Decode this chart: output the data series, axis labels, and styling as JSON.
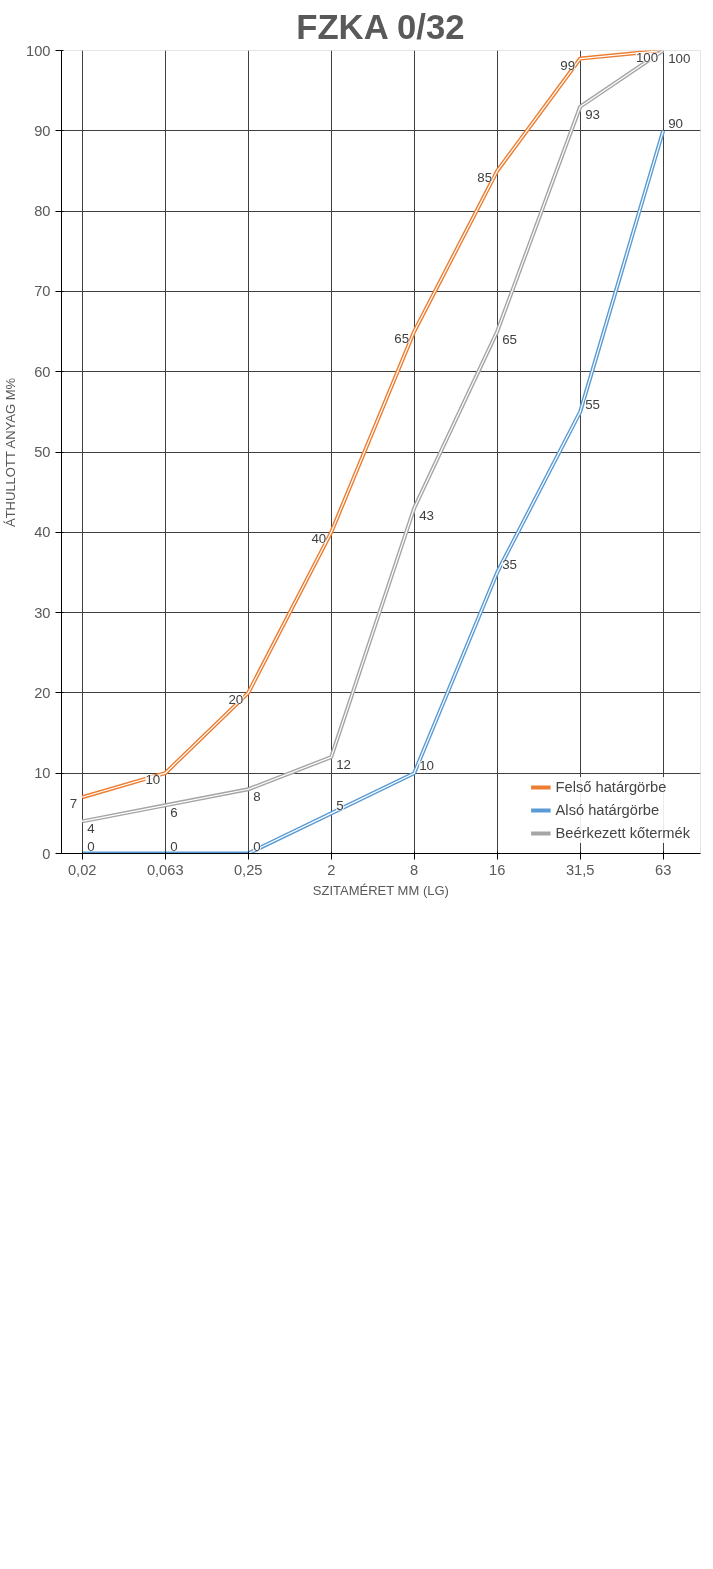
{
  "chart_data": {
    "type": "line",
    "title": "FZKA 0/32",
    "xlabel": "SZITAMÉRET MM (LG)",
    "ylabel": "ÁTHULLOTT ANYAG M%",
    "categories": [
      "0,02",
      "0,063",
      "0,25",
      "2",
      "8",
      "16",
      "31,5",
      "63"
    ],
    "series": [
      {
        "name": "Felső határgörbe",
        "color": "#ed7d31",
        "values": [
          7,
          10,
          20,
          40,
          65,
          85,
          99,
          100
        ]
      },
      {
        "name": "Alsó határgörbe",
        "color": "#5b9bd5",
        "values": [
          0,
          0,
          0,
          5,
          10,
          35,
          55,
          90
        ]
      },
      {
        "name": "Beérkezett kőtermék",
        "color": "#a5a5a5",
        "values": [
          4,
          6,
          8,
          12,
          43,
          65,
          93,
          100
        ]
      }
    ],
    "ylim": [
      0,
      100
    ],
    "yticks": [
      0,
      10,
      20,
      30,
      40,
      50,
      60,
      70,
      80,
      90,
      100
    ],
    "grid": true,
    "legend": "right",
    "data_labels": true,
    "marker": "none",
    "line_style": "solid"
  }
}
